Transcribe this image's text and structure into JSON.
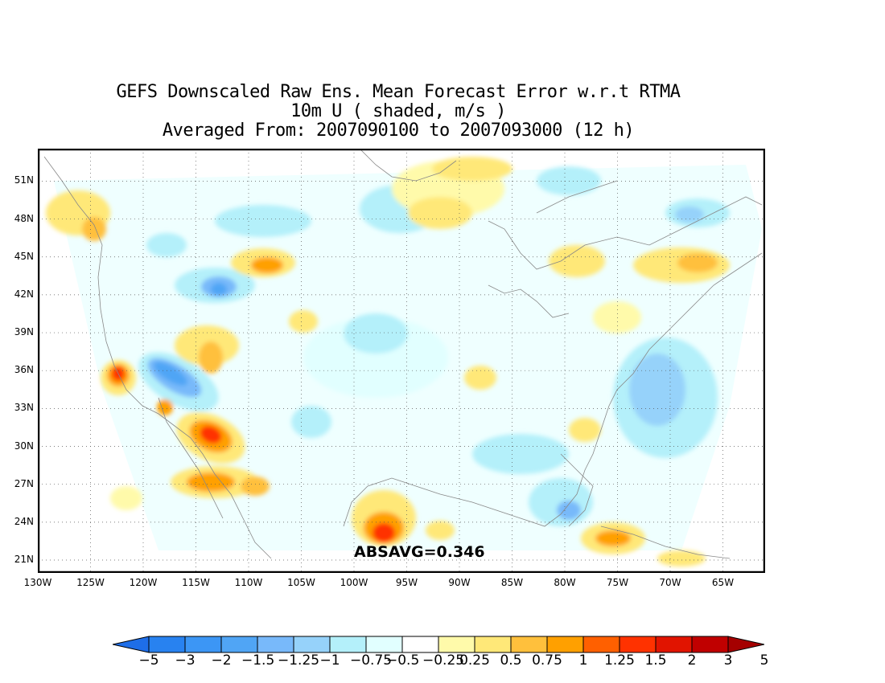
{
  "title": {
    "line1": "GEFS Downscaled Raw Ens. Mean Forecast Error w.r.t RTMA",
    "line2": "10m U ( shaded, m/s )",
    "line3": "Averaged From: 2007090100 to 2007093000 (12 h)"
  },
  "annotation": "ABSAVG=0.346",
  "chart_data": {
    "type": "heatmap",
    "title": "GEFS Downscaled Raw Ens. Mean Forecast Error w.r.t RTMA",
    "variable": "10m U",
    "units": "m/s",
    "averaging_period": "2007090100 to 2007093000 (12 h)",
    "lat_range": [
      19.5,
      53
    ],
    "lon_range": [
      -130,
      -61
    ],
    "lat_ticks": [
      "51N",
      "48N",
      "45N",
      "42N",
      "39N",
      "36N",
      "33N",
      "30N",
      "27N",
      "24N",
      "21N"
    ],
    "lon_ticks": [
      "130W",
      "125W",
      "120W",
      "115W",
      "110W",
      "105W",
      "100W",
      "95W",
      "90W",
      "85W",
      "80W",
      "75W",
      "70W",
      "65W"
    ],
    "grid": true,
    "colorbar": {
      "levels": [
        "-5",
        "-3",
        "-2",
        "-1.5",
        "-1.25",
        "-1",
        "-0.75",
        "-0.5",
        "-0.25",
        "0.25",
        "0.5",
        "0.75",
        "1",
        "1.25",
        "1.5",
        "2",
        "3",
        "5"
      ],
      "colors": [
        "#1e6ee8",
        "#2882f0",
        "#3c96f5",
        "#50a5f5",
        "#78b9fa",
        "#96d2fa",
        "#b4f0fa",
        "#e1ffff",
        "#ffffff",
        "#fffaaa",
        "#ffe878",
        "#ffc03c",
        "#ffa000",
        "#ff6000",
        "#ff3200",
        "#e11400",
        "#c00000",
        "#a50000"
      ]
    },
    "features": [
      {
        "lon": -122.5,
        "lat": 35.5,
        "value": 2.0
      },
      {
        "lon": -118,
        "lat": 36.5,
        "value": -2.0
      },
      {
        "lon": -114,
        "lat": 31,
        "value": 2.0
      },
      {
        "lon": -113.5,
        "lat": 42.5,
        "value": -1.5
      },
      {
        "lon": -106.5,
        "lat": 44,
        "value": 1.25
      },
      {
        "lon": -104.5,
        "lat": 39.5,
        "value": 1.0
      },
      {
        "lon": -96,
        "lat": 23,
        "value": 3.0
      },
      {
        "lon": -80,
        "lat": 25,
        "value": -1.25
      },
      {
        "lon": -76,
        "lat": 22,
        "value": 1.25
      },
      {
        "lon": -75,
        "lat": 34,
        "value": -1.0
      }
    ]
  }
}
